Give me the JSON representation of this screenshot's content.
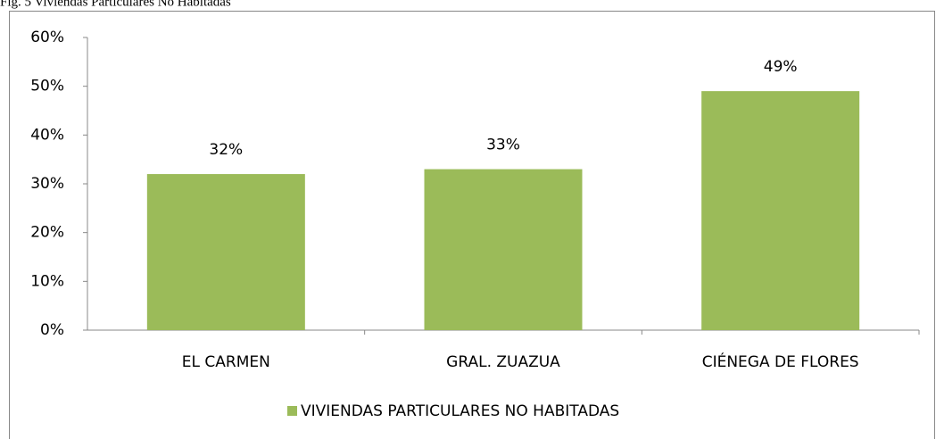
{
  "chart_data": {
    "type": "bar",
    "caption": "Fig. 5 Viviendas Particulares No Habitadas",
    "categories": [
      "EL CARMEN",
      "GRAL. ZUAZUA",
      "CIÉNEGA DE FLORES"
    ],
    "series": [
      {
        "name": "VIVIENDAS PARTICULARES NO HABITADAS",
        "color": "#9bbb59",
        "values": [
          32,
          33,
          49
        ],
        "value_labels": [
          "32%",
          "33%",
          "49%"
        ]
      }
    ],
    "ylim": [
      0,
      60
    ],
    "yticks": [
      {
        "value": 0,
        "label": "0%"
      },
      {
        "value": 10,
        "label": "10%"
      },
      {
        "value": 20,
        "label": "20%"
      },
      {
        "value": 30,
        "label": "30%"
      },
      {
        "value": 40,
        "label": "40%"
      },
      {
        "value": 50,
        "label": "50%"
      },
      {
        "value": 60,
        "label": "60%"
      }
    ],
    "grid": false,
    "legend": "bottom"
  }
}
